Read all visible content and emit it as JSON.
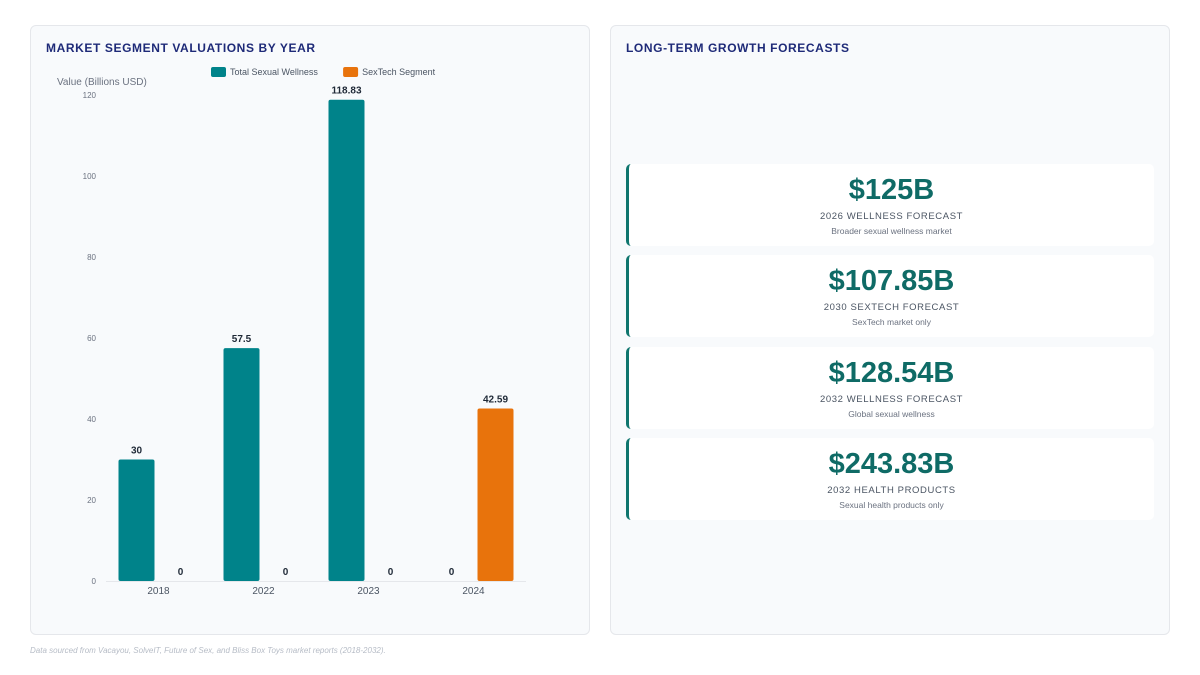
{
  "left_panel": {
    "title": "MARKET SEGMENT VALUATIONS BY YEAR"
  },
  "right_panel": {
    "title": "LONG-TERM GROWTH FORECASTS",
    "forecasts": [
      {
        "value": "$125B",
        "label": "2026 WELLNESS FORECAST",
        "description": "Broader sexual wellness market"
      },
      {
        "value": "$107.85B",
        "label": "2030 SEXTECH FORECAST",
        "description": "SexTech market only"
      },
      {
        "value": "$128.54B",
        "label": "2032 WELLNESS FORECAST",
        "description": "Global sexual wellness"
      },
      {
        "value": "$243.83B",
        "label": "2032 HEALTH PRODUCTS",
        "description": "Sexual health products only"
      }
    ]
  },
  "footer": {
    "note": "Data sourced from Vacayou, SolveIT, Future of Sex, and Bliss Box Toys market reports (2018-2032)."
  },
  "colors": {
    "wellness": "#00838a",
    "sextech": "#e8730c",
    "title": "#1e2a78",
    "forecast_value": "#0f6b66"
  },
  "chart_data": {
    "type": "bar",
    "title": "MARKET SEGMENT VALUATIONS BY YEAR",
    "xlabel": "",
    "ylabel": "Value (Billions USD)",
    "categories": [
      "2018",
      "2022",
      "2023",
      "2024"
    ],
    "series": [
      {
        "name": "Total Sexual Wellness",
        "values": [
          30,
          57.5,
          118.83,
          0
        ],
        "labels": [
          "30",
          "57.5",
          "118.83",
          "0"
        ],
        "color": "#00838a"
      },
      {
        "name": "SexTech Segment",
        "values": [
          0,
          0,
          0,
          42.59
        ],
        "labels": [
          "0",
          "0",
          "0",
          "42.59"
        ],
        "color": "#e8730c"
      }
    ],
    "ylim": [
      0,
      120
    ],
    "yticks": [
      0,
      20,
      40,
      60,
      80,
      100,
      120
    ],
    "grid": false,
    "legend": "top"
  }
}
